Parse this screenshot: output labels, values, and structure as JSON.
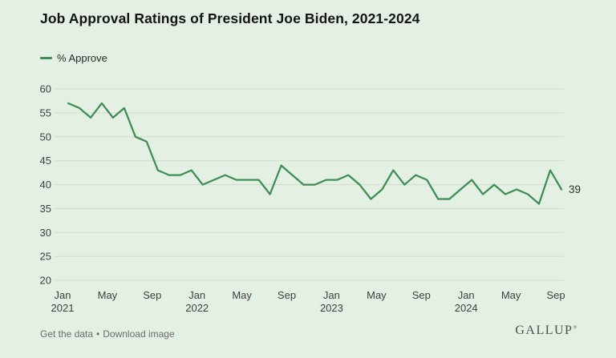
{
  "title": "Job Approval Ratings of President Joe Biden, 2021-2024",
  "legend": {
    "label": "% Approve"
  },
  "chart_data": {
    "type": "line",
    "title": "Job Approval Ratings of President Joe Biden, 2021-2024",
    "series": [
      {
        "name": "% Approve",
        "color": "#3e8d54",
        "values": [
          57,
          56,
          54,
          57,
          54,
          56,
          50,
          49,
          43,
          42,
          42,
          43,
          40,
          41,
          42,
          41,
          41,
          41,
          38,
          44,
          42,
          40,
          40,
          41,
          41,
          42,
          40,
          37,
          39,
          43,
          40,
          42,
          41,
          37,
          37,
          39,
          41,
          38,
          40,
          38,
          39,
          38,
          36,
          43,
          39
        ]
      }
    ],
    "x_months": [
      "Jan 2021",
      "Feb 2021",
      "Mar 2021",
      "Apr 2021",
      "May 2021",
      "Jun 2021",
      "Jul 2021",
      "Aug 2021",
      "Sep 2021",
      "Oct 2021",
      "Nov 2021",
      "Dec 2021",
      "Jan 2022",
      "Feb 2022",
      "Mar 2022",
      "Apr 2022",
      "May 2022",
      "Jun 2022",
      "Jul 2022",
      "Aug 2022",
      "Sep 2022",
      "Oct 2022",
      "Nov 2022",
      "Dec 2022",
      "Jan 2023",
      "Feb 2023",
      "Mar 2023",
      "Apr 2023",
      "May 2023",
      "Jun 2023",
      "Jul 2023",
      "Aug 2023",
      "Sep 2023",
      "Oct 2023",
      "Nov 2023",
      "Dec 2023",
      "Jan 2024",
      "Feb 2024",
      "Mar 2024",
      "Apr 2024",
      "May 2024",
      "Jun 2024",
      "Jul 2024",
      "Aug 2024",
      "Sep 2024"
    ],
    "x_ticks": [
      {
        "month_index": 0,
        "label": "Jan",
        "year": "2021"
      },
      {
        "month_index": 4,
        "label": "May",
        "year": ""
      },
      {
        "month_index": 8,
        "label": "Sep",
        "year": ""
      },
      {
        "month_index": 12,
        "label": "Jan",
        "year": "2022"
      },
      {
        "month_index": 16,
        "label": "May",
        "year": ""
      },
      {
        "month_index": 20,
        "label": "Sep",
        "year": ""
      },
      {
        "month_index": 24,
        "label": "Jan",
        "year": "2023"
      },
      {
        "month_index": 28,
        "label": "May",
        "year": ""
      },
      {
        "month_index": 32,
        "label": "Sep",
        "year": ""
      },
      {
        "month_index": 36,
        "label": "Jan",
        "year": "2024"
      },
      {
        "month_index": 40,
        "label": "May",
        "year": ""
      },
      {
        "month_index": 44,
        "label": "Sep",
        "year": ""
      }
    ],
    "y_ticks": [
      60,
      55,
      50,
      45,
      40,
      35,
      30,
      25,
      20
    ],
    "ylim": [
      20,
      60
    ],
    "grid": "horizontal",
    "legend_position": "top-left",
    "end_label": "39"
  },
  "footer": {
    "get_data_label": "Get the data",
    "separator": "•",
    "download_label": "Download image",
    "logo_text": "GALLUP",
    "trademark": "®"
  },
  "colors": {
    "background": "#e4f0e3",
    "line": "#3e8d54",
    "grid": "#d2dccd",
    "title_text": "#141414",
    "axis_text": "#3f3f3f",
    "footer_text": "#6c6c6c",
    "logo_text": "#4e4e4e"
  }
}
